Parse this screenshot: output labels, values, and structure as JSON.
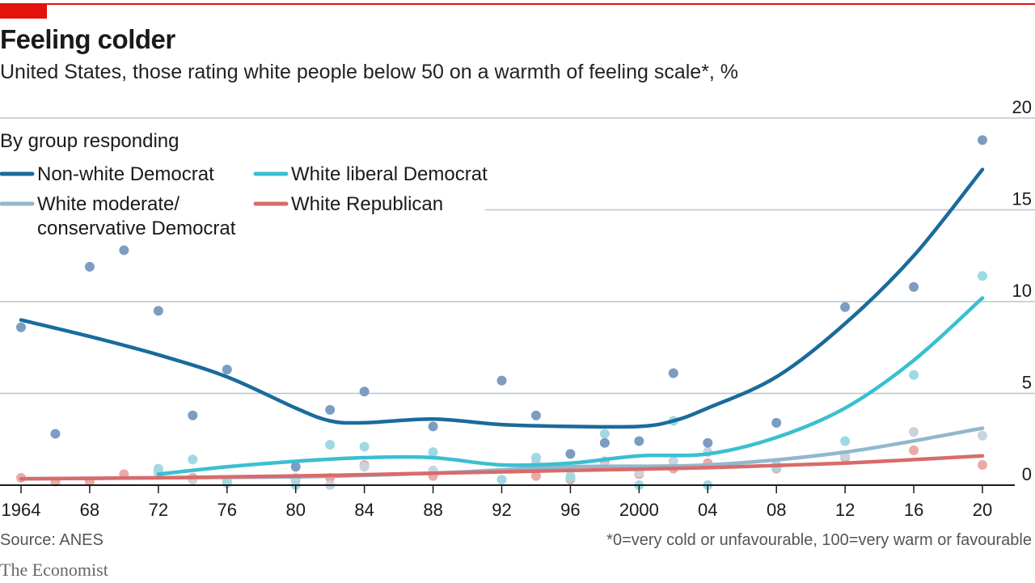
{
  "header": {
    "title": "Feeling colder",
    "subtitle": "United States, those rating white people below 50 on a warmth of feeling scale*, %"
  },
  "footer": {
    "source": "Source: ANES",
    "note": "*0=very cold or unfavourable, 100=very warm or favourable",
    "brand": "The Economist"
  },
  "colors": {
    "accent": "#e3120b",
    "grid": "#b7c6d0",
    "axis": "#1a1a1a"
  },
  "chart_data": {
    "type": "scatter",
    "title": "Feeling colder",
    "ylim": [
      0,
      20
    ],
    "xlim": [
      1964,
      2020
    ],
    "y_ticks": [
      0,
      5,
      10,
      15,
      20
    ],
    "x_ticks": [
      1964,
      1968,
      1972,
      1976,
      1980,
      1984,
      1988,
      1992,
      1996,
      2000,
      2004,
      2008,
      2012,
      2016,
      2020
    ],
    "x_tick_labels": [
      "1964",
      "68",
      "72",
      "76",
      "80",
      "84",
      "88",
      "92",
      "96",
      "2000",
      "04",
      "08",
      "12",
      "16",
      "20"
    ],
    "legend_title": "By group responding",
    "series": [
      {
        "name": "Non-white Democrat",
        "label_lines": [
          "Non-white Democrat"
        ],
        "color": "#1a6b9c",
        "dot_color": "#7d9cc1",
        "points": [
          [
            1964,
            8.6
          ],
          [
            1966,
            2.8
          ],
          [
            1968,
            11.9
          ],
          [
            1970,
            12.8
          ],
          [
            1972,
            9.5
          ],
          [
            1974,
            3.8
          ],
          [
            1976,
            6.3
          ],
          [
            1980,
            1.0
          ],
          [
            1982,
            4.1
          ],
          [
            1984,
            5.1
          ],
          [
            1988,
            3.2
          ],
          [
            1992,
            5.7
          ],
          [
            1994,
            3.8
          ],
          [
            1996,
            1.7
          ],
          [
            1998,
            2.3
          ],
          [
            2000,
            2.4
          ],
          [
            2002,
            6.1
          ],
          [
            2004,
            2.3
          ],
          [
            2008,
            3.4
          ],
          [
            2012,
            9.7
          ],
          [
            2016,
            10.8
          ],
          [
            2020,
            18.8
          ]
        ],
        "trend": [
          [
            1964,
            9.0
          ],
          [
            1968,
            8.1
          ],
          [
            1972,
            7.1
          ],
          [
            1976,
            5.9
          ],
          [
            1980,
            4.2
          ],
          [
            1982,
            3.5
          ],
          [
            1984,
            3.4
          ],
          [
            1988,
            3.6
          ],
          [
            1992,
            3.3
          ],
          [
            1996,
            3.2
          ],
          [
            2000,
            3.2
          ],
          [
            2002,
            3.5
          ],
          [
            2004,
            4.2
          ],
          [
            2008,
            5.9
          ],
          [
            2012,
            8.8
          ],
          [
            2016,
            12.5
          ],
          [
            2020,
            17.2
          ]
        ]
      },
      {
        "name": "White liberal Democrat",
        "label_lines": [
          "White liberal Democrat"
        ],
        "color": "#3bbfd0",
        "dot_color": "#9fd9e4",
        "points": [
          [
            1972,
            0.9
          ],
          [
            1974,
            1.4
          ],
          [
            1976,
            0.2
          ],
          [
            1980,
            0.0
          ],
          [
            1982,
            2.2
          ],
          [
            1984,
            2.1
          ],
          [
            1988,
            1.8
          ],
          [
            1992,
            0.3
          ],
          [
            1994,
            1.5
          ],
          [
            1996,
            0.4
          ],
          [
            1998,
            2.8
          ],
          [
            2000,
            0.0
          ],
          [
            2002,
            3.5
          ],
          [
            2004,
            0.0
          ],
          [
            2008,
            1.0
          ],
          [
            2012,
            2.4
          ],
          [
            2016,
            6.0
          ],
          [
            2020,
            11.4
          ]
        ],
        "trend": [
          [
            1972,
            0.6
          ],
          [
            1976,
            1.0
          ],
          [
            1980,
            1.3
          ],
          [
            1984,
            1.5
          ],
          [
            1988,
            1.5
          ],
          [
            1992,
            1.1
          ],
          [
            1996,
            1.2
          ],
          [
            2000,
            1.6
          ],
          [
            2004,
            1.7
          ],
          [
            2008,
            2.6
          ],
          [
            2012,
            4.2
          ],
          [
            2016,
            6.8
          ],
          [
            2020,
            10.2
          ]
        ]
      },
      {
        "name": "White moderate/ conservative Democrat",
        "label_lines": [
          "White moderate/",
          "conservative Democrat"
        ],
        "color": "#93b7cc",
        "dot_color": "#c8d4de",
        "points": [
          [
            1972,
            0.7
          ],
          [
            1974,
            0.3
          ],
          [
            1976,
            0.1
          ],
          [
            1980,
            0.4
          ],
          [
            1982,
            0.0
          ],
          [
            1984,
            1.0
          ],
          [
            1988,
            0.8
          ],
          [
            1994,
            1.2
          ],
          [
            1996,
            0.5
          ],
          [
            1998,
            1.0
          ],
          [
            2000,
            0.7
          ],
          [
            2002,
            1.3
          ],
          [
            2004,
            1.8
          ],
          [
            2008,
            1.1
          ],
          [
            2012,
            1.6
          ],
          [
            2016,
            2.9
          ],
          [
            2020,
            2.7
          ]
        ],
        "trend": [
          [
            1964,
            0.35
          ],
          [
            1972,
            0.4
          ],
          [
            1980,
            0.45
          ],
          [
            1988,
            0.65
          ],
          [
            1996,
            1.0
          ],
          [
            2004,
            1.1
          ],
          [
            2012,
            1.8
          ],
          [
            2020,
            3.1
          ]
        ]
      },
      {
        "name": "White Republican",
        "label_lines": [
          "White Republican"
        ],
        "color": "#d96b6b",
        "dot_color": "#ebaaa6",
        "points": [
          [
            1964,
            0.4
          ],
          [
            1966,
            0.2
          ],
          [
            1968,
            0.2
          ],
          [
            1970,
            0.6
          ],
          [
            1972,
            0.7
          ],
          [
            1974,
            0.4
          ],
          [
            1976,
            0.1
          ],
          [
            1980,
            0.3
          ],
          [
            1982,
            0.4
          ],
          [
            1984,
            1.1
          ],
          [
            1988,
            0.5
          ],
          [
            1994,
            0.5
          ],
          [
            1996,
            0.3
          ],
          [
            1998,
            1.3
          ],
          [
            2000,
            0.6
          ],
          [
            2002,
            0.9
          ],
          [
            2004,
            1.2
          ],
          [
            2008,
            0.9
          ],
          [
            2012,
            1.5
          ],
          [
            2016,
            1.9
          ],
          [
            2020,
            1.1
          ]
        ],
        "trend": [
          [
            1964,
            0.35
          ],
          [
            1972,
            0.4
          ],
          [
            1980,
            0.5
          ],
          [
            1988,
            0.65
          ],
          [
            1996,
            0.8
          ],
          [
            2004,
            0.95
          ],
          [
            2012,
            1.2
          ],
          [
            2020,
            1.6
          ]
        ]
      }
    ]
  }
}
